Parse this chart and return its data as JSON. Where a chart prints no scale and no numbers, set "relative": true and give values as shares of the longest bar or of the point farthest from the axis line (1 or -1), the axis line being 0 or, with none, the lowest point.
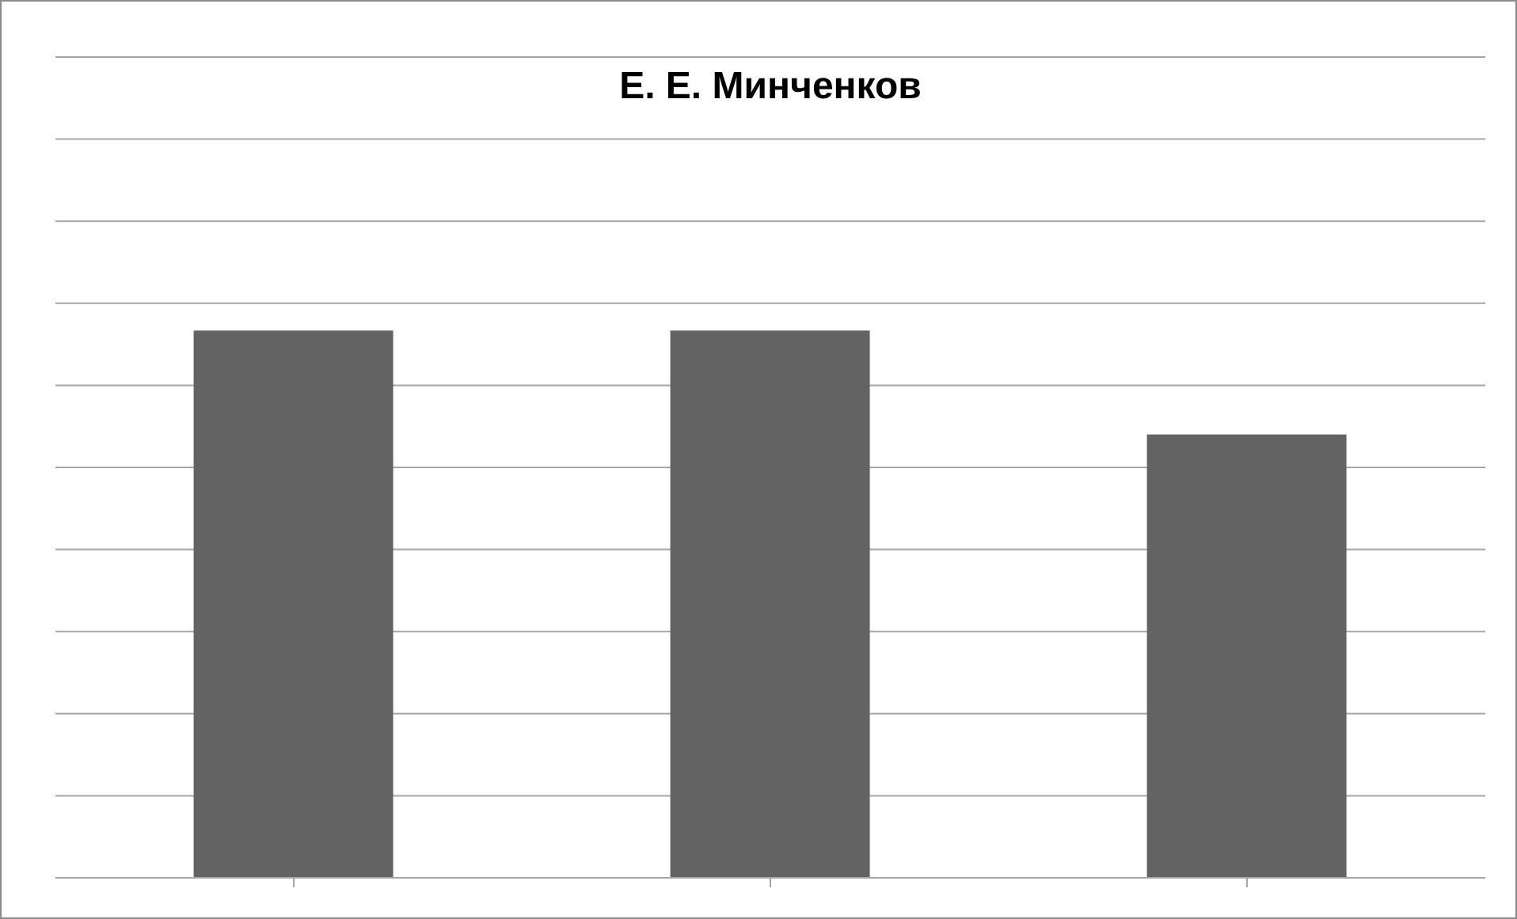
{
  "chart_data": {
    "type": "bar",
    "title": "Е. Е. Минченков",
    "categories": [
      null,
      null,
      null
    ],
    "values": [
      1,
      1,
      0.81
    ],
    "color": "#636363",
    "relative": true,
    "grid": "y"
  }
}
